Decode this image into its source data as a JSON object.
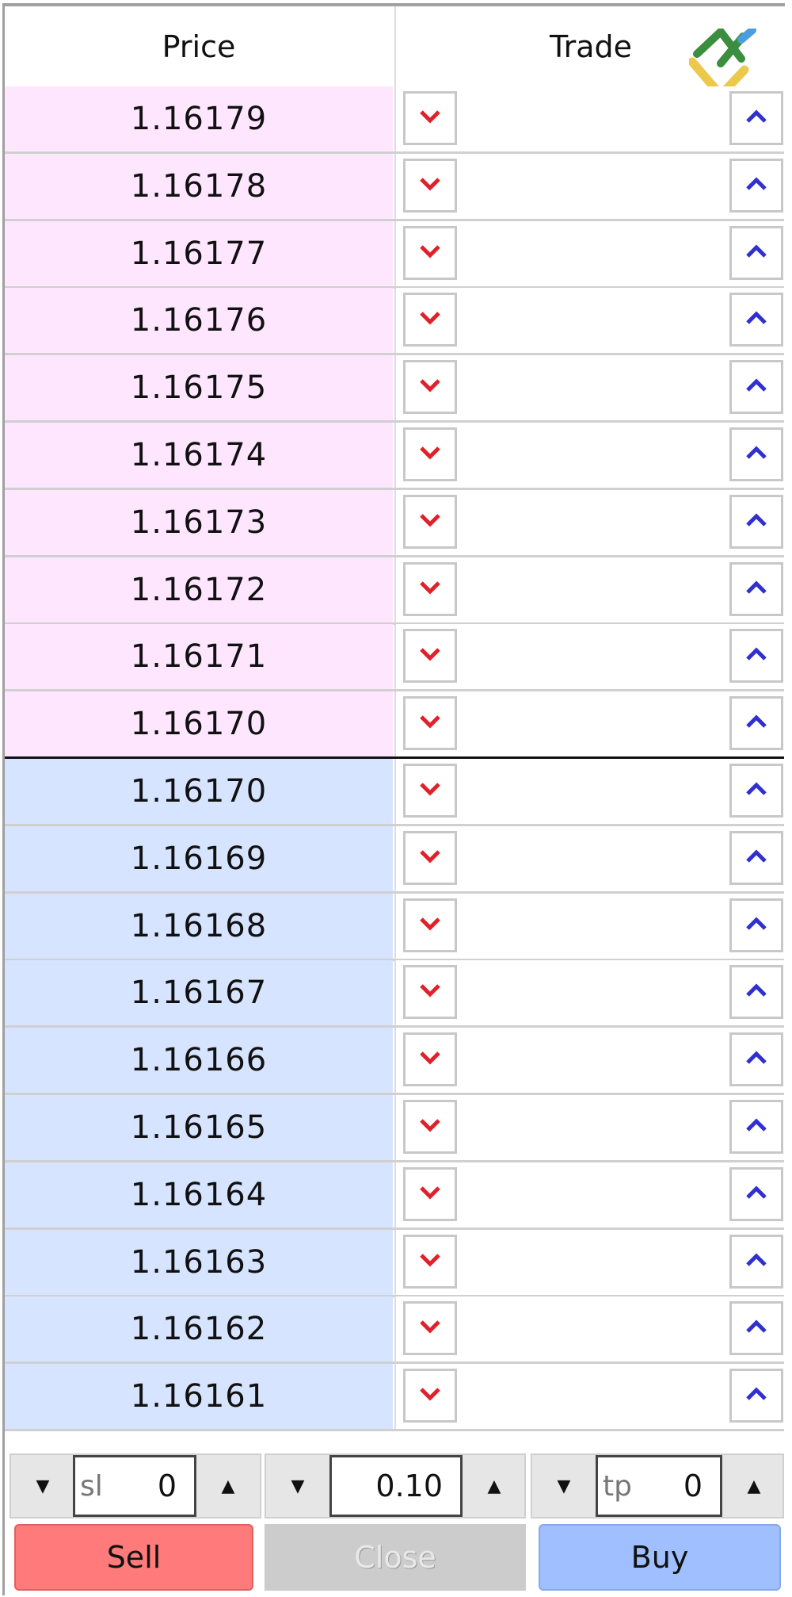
{
  "header": {
    "price": "Price",
    "trade": "Trade"
  },
  "ask_rows": [
    "1.16179",
    "1.16178",
    "1.16177",
    "1.16176",
    "1.16175",
    "1.16174",
    "1.16173",
    "1.16172",
    "1.16171",
    "1.16170"
  ],
  "bid_rows": [
    "1.16170",
    "1.16169",
    "1.16168",
    "1.16167",
    "1.16166",
    "1.16165",
    "1.16164",
    "1.16163",
    "1.16162",
    "1.16161"
  ],
  "controls": {
    "sl": {
      "label": "sl",
      "value": "0"
    },
    "volume": {
      "value": "0.10"
    },
    "tp": {
      "label": "tp",
      "value": "0"
    }
  },
  "buttons": {
    "sell": "Sell",
    "close": "Close",
    "buy": "Buy"
  },
  "colors": {
    "ask_bg": "#ffe6ff",
    "bid_bg": "#d6e4ff",
    "sell": "#ff7b7b",
    "close": "#cccccc",
    "buy": "#a0bfff",
    "down_arrow": "#e0202a",
    "up_arrow": "#3030d0"
  }
}
